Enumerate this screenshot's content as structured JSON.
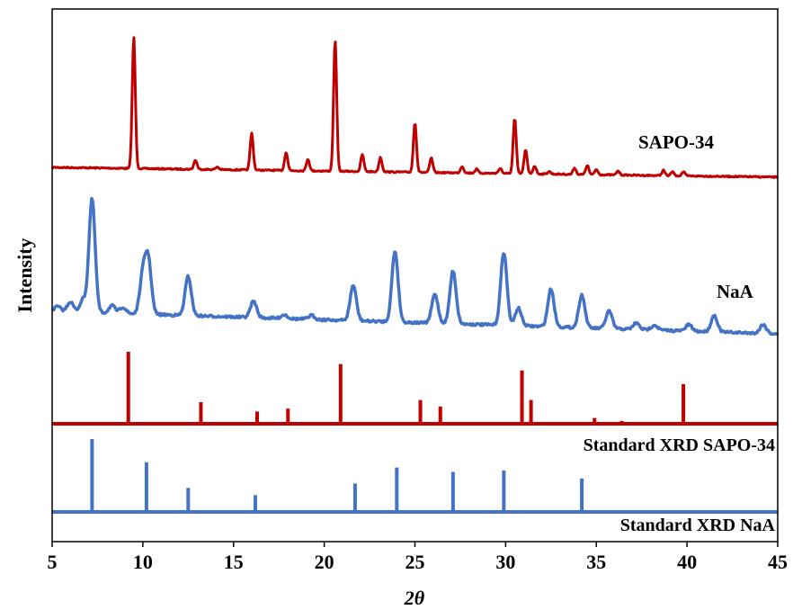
{
  "chart_data": {
    "type": "line",
    "xlabel": "2θ",
    "ylabel": "Intensity",
    "xlim": [
      5,
      45
    ],
    "x_ticks": [
      "5",
      "10",
      "15",
      "20",
      "25",
      "30",
      "35",
      "40",
      "45"
    ],
    "y_ticks_shown": false,
    "grid": false,
    "legend": "none",
    "series": [
      {
        "name": "SAPO-34",
        "color": "#C00000",
        "kind": "line",
        "peaks": [
          {
            "x": 9.5,
            "h": 1.0
          },
          {
            "x": 12.9,
            "h": 0.07
          },
          {
            "x": 14.1,
            "h": 0.02
          },
          {
            "x": 16.0,
            "h": 0.28
          },
          {
            "x": 17.9,
            "h": 0.14
          },
          {
            "x": 19.1,
            "h": 0.09
          },
          {
            "x": 20.6,
            "h": 1.0
          },
          {
            "x": 22.1,
            "h": 0.13
          },
          {
            "x": 23.1,
            "h": 0.11
          },
          {
            "x": 25.0,
            "h": 0.38
          },
          {
            "x": 25.9,
            "h": 0.11
          },
          {
            "x": 27.6,
            "h": 0.05
          },
          {
            "x": 28.4,
            "h": 0.03
          },
          {
            "x": 29.7,
            "h": 0.04
          },
          {
            "x": 30.5,
            "h": 0.42
          },
          {
            "x": 31.1,
            "h": 0.18
          },
          {
            "x": 31.6,
            "h": 0.06
          },
          {
            "x": 32.4,
            "h": 0.02
          },
          {
            "x": 33.8,
            "h": 0.05
          },
          {
            "x": 34.5,
            "h": 0.07
          },
          {
            "x": 35.0,
            "h": 0.04
          },
          {
            "x": 36.2,
            "h": 0.03
          },
          {
            "x": 38.7,
            "h": 0.04
          },
          {
            "x": 39.2,
            "h": 0.03
          },
          {
            "x": 39.8,
            "h": 0.03
          }
        ]
      },
      {
        "name": "NaA",
        "color": "#4472C4",
        "kind": "line",
        "peaks": [
          {
            "x": 5.3,
            "h": 0.04
          },
          {
            "x": 6.0,
            "h": 0.08
          },
          {
            "x": 6.7,
            "h": 0.1
          },
          {
            "x": 7.2,
            "h": 0.9
          },
          {
            "x": 8.3,
            "h": 0.06
          },
          {
            "x": 8.9,
            "h": 0.05
          },
          {
            "x": 10.0,
            "h": 0.3
          },
          {
            "x": 10.3,
            "h": 0.42
          },
          {
            "x": 12.5,
            "h": 0.31
          },
          {
            "x": 16.1,
            "h": 0.13
          },
          {
            "x": 17.8,
            "h": 0.03
          },
          {
            "x": 19.3,
            "h": 0.03
          },
          {
            "x": 21.6,
            "h": 0.28
          },
          {
            "x": 23.9,
            "h": 0.56
          },
          {
            "x": 26.1,
            "h": 0.23
          },
          {
            "x": 27.1,
            "h": 0.42
          },
          {
            "x": 29.9,
            "h": 0.58
          },
          {
            "x": 30.7,
            "h": 0.14
          },
          {
            "x": 32.5,
            "h": 0.3
          },
          {
            "x": 34.2,
            "h": 0.26
          },
          {
            "x": 35.7,
            "h": 0.14
          },
          {
            "x": 37.2,
            "h": 0.05
          },
          {
            "x": 38.2,
            "h": 0.04
          },
          {
            "x": 40.1,
            "h": 0.05
          },
          {
            "x": 41.5,
            "h": 0.13
          },
          {
            "x": 44.2,
            "h": 0.07
          }
        ]
      },
      {
        "name": "Standard XRD SAPO-34",
        "color": "#C00000",
        "kind": "sticks",
        "peaks": [
          {
            "x": 9.2,
            "h": 1.0
          },
          {
            "x": 13.2,
            "h": 0.3
          },
          {
            "x": 16.3,
            "h": 0.17
          },
          {
            "x": 18.0,
            "h": 0.21
          },
          {
            "x": 20.9,
            "h": 0.83
          },
          {
            "x": 25.3,
            "h": 0.33
          },
          {
            "x": 26.4,
            "h": 0.24
          },
          {
            "x": 30.9,
            "h": 0.74
          },
          {
            "x": 31.4,
            "h": 0.33
          },
          {
            "x": 34.9,
            "h": 0.08
          },
          {
            "x": 36.4,
            "h": 0.04
          },
          {
            "x": 39.8,
            "h": 0.55
          }
        ]
      },
      {
        "name": "Standard XRD NaA",
        "color": "#4472C4",
        "kind": "sticks",
        "peaks": [
          {
            "x": 7.2,
            "h": 1.0
          },
          {
            "x": 10.2,
            "h": 0.68
          },
          {
            "x": 12.5,
            "h": 0.33
          },
          {
            "x": 16.2,
            "h": 0.23
          },
          {
            "x": 21.7,
            "h": 0.39
          },
          {
            "x": 24.0,
            "h": 0.61
          },
          {
            "x": 27.1,
            "h": 0.55
          },
          {
            "x": 29.9,
            "h": 0.57
          },
          {
            "x": 34.2,
            "h": 0.46
          }
        ]
      }
    ]
  }
}
